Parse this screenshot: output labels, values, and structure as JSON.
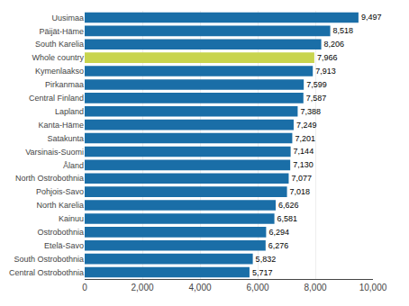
{
  "chart_data": {
    "type": "bar",
    "orientation": "horizontal",
    "categories": [
      "Central Ostrobothnia",
      "South Ostrobothnia",
      "Etelä-Savo",
      "Ostrobothnia",
      "Kainuu",
      "North Karelia",
      "Pohjois-Savo",
      "North Ostrobothnia",
      "Åland",
      "Varsinais-Suomi",
      "Satakunta",
      "Kanta-Häme",
      "Lapland",
      "Central Finland",
      "Pirkanmaa",
      "Kymenlaakso",
      "Whole country",
      "South Karelia",
      "Päijät-Häme",
      "Uusimaa"
    ],
    "values": [
      5717,
      5832,
      6276,
      6294,
      6581,
      6626,
      7018,
      7077,
      7130,
      7144,
      7201,
      7249,
      7388,
      7587,
      7599,
      7913,
      7966,
      8206,
      8518,
      9497
    ],
    "value_labels": [
      "5,717",
      "5,832",
      "6,276",
      "6,294",
      "6,581",
      "6,626",
      "7,018",
      "7,077",
      "7,130",
      "7,144",
      "7,201",
      "7,249",
      "7,388",
      "7,587",
      "7,599",
      "7,913",
      "7,966",
      "8,206",
      "8,518",
      "9,497"
    ],
    "data_labels": true,
    "colors": [
      "#1a6ea7",
      "#1a6ea7",
      "#1a6ea7",
      "#1a6ea7",
      "#1a6ea7",
      "#1a6ea7",
      "#1a6ea7",
      "#1a6ea7",
      "#1a6ea7",
      "#1a6ea7",
      "#1a6ea7",
      "#1a6ea7",
      "#1a6ea7",
      "#1a6ea7",
      "#1a6ea7",
      "#1a6ea7",
      "#c8d44e",
      "#1a6ea7",
      "#1a6ea7",
      "#1a6ea7"
    ],
    "xlim": [
      0,
      10000
    ],
    "xticks": [
      0,
      {
        "value": 2000,
        "label": "2,000"
      },
      {
        "value": 4000,
        "label": "4,000"
      },
      {
        "value": 6000,
        "label": "6,000"
      },
      {
        "value": 8000,
        "label": "8,000"
      },
      {
        "value": 10000,
        "label": "10,000"
      }
    ],
    "grid": true
  }
}
